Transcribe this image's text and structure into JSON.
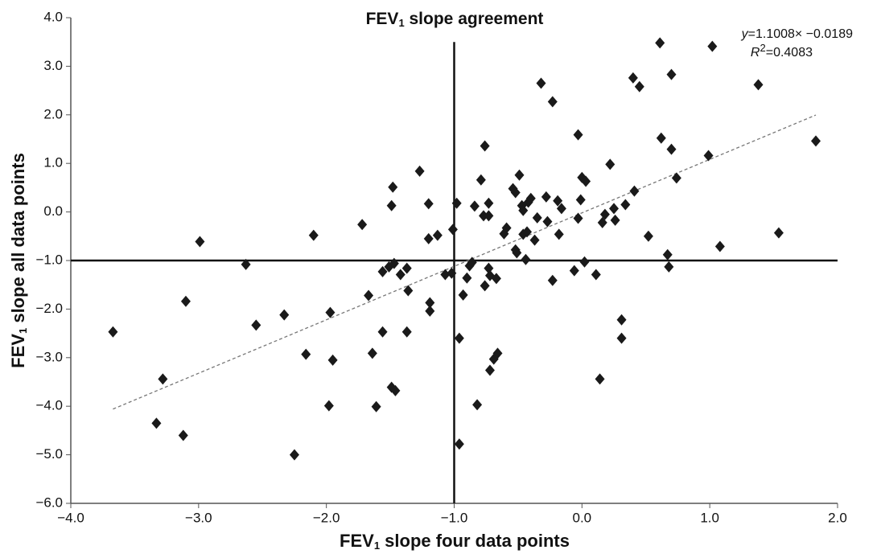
{
  "chart_data": {
    "type": "scatter",
    "title": {
      "main": "FEV",
      "sub": "1",
      "rest": " slope agreement"
    },
    "x_label": {
      "main": "FEV",
      "sub": "1",
      "rest": " slope four data points"
    },
    "y_label": {
      "main": "FEV",
      "sub": "1",
      "rest": " slope all data points"
    },
    "annotation": {
      "eq_var": "y",
      "eq_rest": "=1.1008× −0.0189",
      "r_var": "R",
      "r_sup": "2",
      "r_rest": "=0.4083"
    },
    "trendline": {
      "slope": 1.1008,
      "intercept": -0.0189,
      "xlim": [
        -3.67,
        1.83
      ],
      "color": "#777777"
    },
    "reference_lines": [
      {
        "x": -1,
        "ylim": [
          -6,
          3.5
        ]
      },
      {
        "y": -1,
        "xlim": [
          -4,
          2
        ]
      }
    ],
    "color": "#1a1a1a",
    "x": [
      -3.67,
      -3.33,
      -3.28,
      -3.12,
      -3.1,
      -2.99,
      -2.63,
      -2.55,
      -2.33,
      -2.25,
      -2.16,
      -2.1,
      -1.97,
      -1.95,
      -1.98,
      -1.72,
      -1.67,
      -1.64,
      -1.61,
      -1.56,
      -1.56,
      -1.49,
      -1.46,
      -1.48,
      -1.49,
      -1.51,
      -1.47,
      -1.42,
      -1.37,
      -1.36,
      -1.37,
      -1.27,
      -1.2,
      -1.2,
      -1.19,
      -1.19,
      -1.13,
      -1.07,
      -1.02,
      -1.01,
      -0.98,
      -0.96,
      -0.96,
      -0.93,
      -0.9,
      -0.88,
      -0.86,
      -0.84,
      -0.82,
      -0.79,
      -0.77,
      -0.76,
      -0.76,
      -0.73,
      -0.73,
      -0.73,
      -0.72,
      -0.72,
      -0.69,
      -0.66,
      -0.67,
      -0.61,
      -0.59,
      -0.54,
      -0.52,
      -0.52,
      -0.51,
      -0.49,
      -0.47,
      -0.46,
      -0.46,
      -0.44,
      -0.43,
      -0.42,
      -0.4,
      -0.37,
      -0.35,
      -0.32,
      -0.28,
      -0.27,
      -0.23,
      -0.23,
      -0.19,
      -0.18,
      -0.16,
      -0.06,
      -0.03,
      -0.03,
      -0.01,
      0.0,
      0.03,
      0.02,
      0.11,
      0.14,
      0.16,
      0.18,
      0.22,
      0.25,
      0.26,
      0.31,
      0.31,
      0.34,
      0.4,
      0.41,
      0.45,
      0.52,
      0.61,
      0.62,
      0.67,
      0.68,
      0.7,
      0.7,
      0.74,
      0.99,
      1.02,
      1.08,
      1.38,
      1.54,
      1.83
    ],
    "values": [
      -2.47,
      -4.35,
      -3.44,
      -4.6,
      -1.84,
      -0.61,
      -1.08,
      -2.33,
      -2.12,
      -5.0,
      -2.93,
      -0.48,
      -2.07,
      -3.05,
      -3.99,
      -0.26,
      -1.72,
      -2.91,
      -4.01,
      -1.23,
      -2.47,
      -3.61,
      -3.68,
      0.51,
      0.13,
      -1.13,
      -1.06,
      -1.29,
      -1.16,
      -1.62,
      -2.47,
      0.84,
      0.17,
      -0.55,
      -1.87,
      -2.04,
      -0.48,
      -1.29,
      -1.26,
      -0.36,
      0.18,
      -2.6,
      -4.78,
      -1.71,
      -1.36,
      -1.11,
      -1.04,
      0.12,
      -3.97,
      0.66,
      -0.08,
      1.36,
      -1.52,
      0.18,
      -0.08,
      -1.16,
      -1.31,
      -3.26,
      -3.03,
      -2.91,
      -1.37,
      -0.45,
      -0.33,
      0.48,
      0.4,
      -0.78,
      -0.84,
      0.76,
      0.13,
      0.03,
      -0.46,
      -0.98,
      -0.41,
      0.2,
      0.28,
      -0.58,
      -0.12,
      2.65,
      0.31,
      -0.2,
      -1.41,
      2.27,
      0.23,
      -0.46,
      0.07,
      -1.21,
      1.59,
      -0.13,
      0.25,
      0.71,
      0.63,
      -1.03,
      -1.29,
      -3.44,
      -0.22,
      -0.05,
      0.98,
      0.07,
      -0.17,
      -2.22,
      -2.6,
      0.15,
      2.76,
      0.43,
      2.58,
      -0.5,
      3.48,
      1.52,
      -0.88,
      -1.13,
      2.83,
      1.29,
      0.7,
      1.16,
      3.41,
      -0.71,
      2.62,
      -0.43,
      1.46
    ],
    "xlim": [
      -4,
      2
    ],
    "ylim": [
      -6,
      4
    ],
    "xticks": [
      {
        "value": -4,
        "label": "−4.0"
      },
      {
        "value": -3,
        "label": "−3.0"
      },
      {
        "value": -2,
        "label": "−2.0"
      },
      {
        "value": -1,
        "label": "−1.0"
      },
      {
        "value": 0,
        "label": "0.0"
      },
      {
        "value": 1,
        "label": "1.0"
      },
      {
        "value": 2,
        "label": "2.0"
      }
    ],
    "yticks": [
      {
        "value": -6,
        "label": "−6.0"
      },
      {
        "value": -5,
        "label": "−5.0"
      },
      {
        "value": -4,
        "label": "−4.0"
      },
      {
        "value": -3,
        "label": "−3.0"
      },
      {
        "value": -2,
        "label": "−2.0"
      },
      {
        "value": -1,
        "label": "−1.0"
      },
      {
        "value": 0,
        "label": "0.0"
      },
      {
        "value": 1,
        "label": "1.0"
      },
      {
        "value": 2,
        "label": "2.0"
      },
      {
        "value": 3,
        "label": "3.0"
      },
      {
        "value": 4,
        "label": "4.0"
      }
    ],
    "grid": false
  }
}
